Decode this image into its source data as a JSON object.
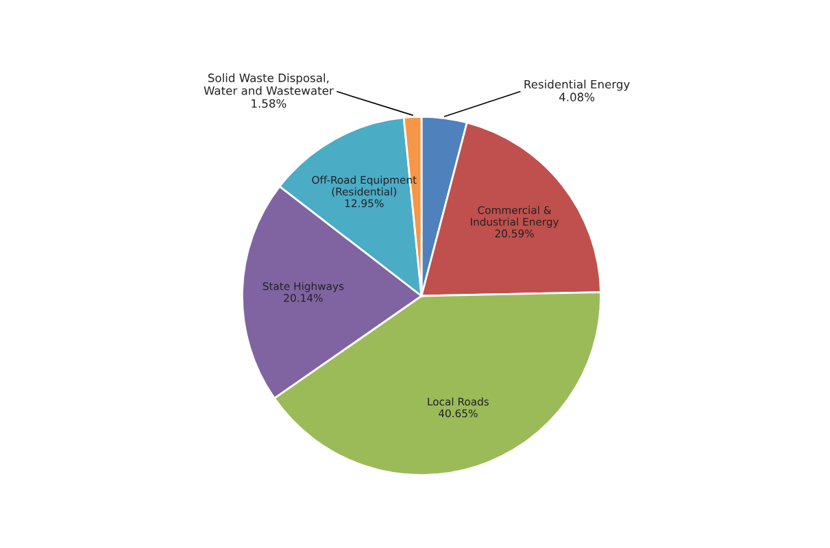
{
  "chart_data": {
    "type": "pie",
    "categories": [
      "Residential Energy",
      "Commercial &\nIndustrial Energy",
      "Local Roads",
      "State Highways",
      "Off-Road Equipment\n(Residential)",
      "Solid Waste Disposal,\nWater and Wastewater"
    ],
    "values": [
      4.08,
      20.59,
      40.65,
      20.14,
      12.95,
      1.58
    ],
    "colors": [
      "#4f81bd",
      "#c0504d",
      "#9bbb59",
      "#8064a2",
      "#4bacc6",
      "#f79646"
    ],
    "value_labels": [
      "4.08%",
      "20.59%",
      "40.65%",
      "20.14%",
      "12.95%",
      "1.58%"
    ],
    "legend": false
  }
}
